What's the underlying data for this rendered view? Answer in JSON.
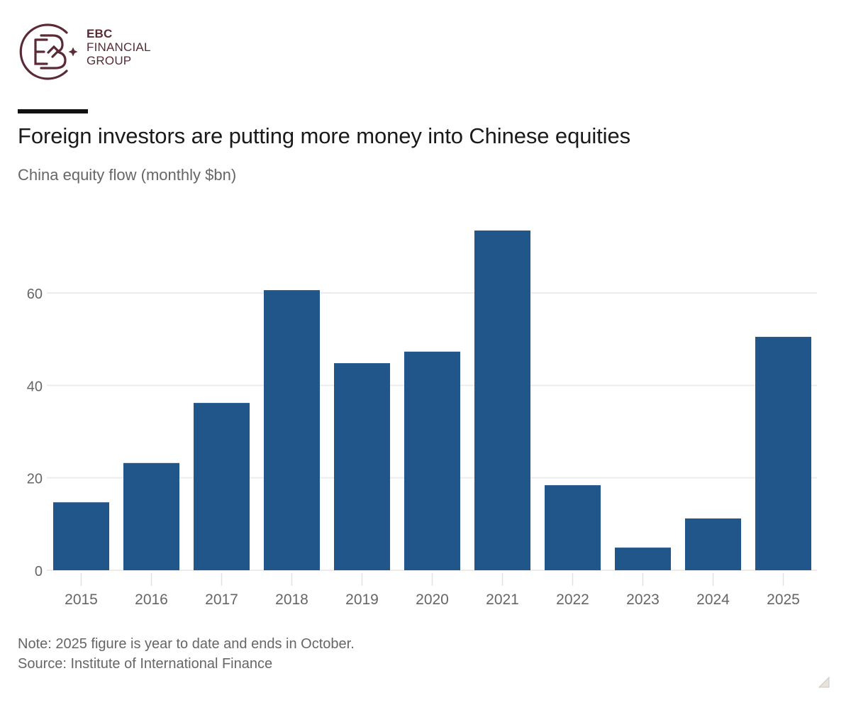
{
  "brand": {
    "line1": "EBC",
    "line2": "FINANCIAL",
    "line3": "GROUP",
    "color": "#5a2a35",
    "logo_icon": "ebc-monogram-icon"
  },
  "header": {
    "title": "Foreign investors are putting more money into Chinese equities",
    "subtitle": "China equity flow (monthly $bn)"
  },
  "footer": {
    "note": "Note: 2025 figure is year to date and ends in October.",
    "source": "Source: Institute of International Finance"
  },
  "colors": {
    "bar": "#21568b",
    "grid": "#ececec",
    "axis_text": "#666666",
    "title": "#1a1a1a"
  },
  "chart_data": {
    "type": "bar",
    "title": "Foreign investors are putting more money into Chinese equities",
    "subtitle": "China equity flow (monthly $bn)",
    "xlabel": "",
    "ylabel": "China equity flow (monthly $bn)",
    "categories": [
      "2015",
      "2016",
      "2017",
      "2018",
      "2019",
      "2020",
      "2021",
      "2022",
      "2023",
      "2024",
      "2025"
    ],
    "values": [
      14.7,
      23.2,
      36.2,
      60.6,
      44.8,
      47.3,
      73.5,
      18.4,
      4.9,
      11.2,
      50.5
    ],
    "ylim": [
      0,
      75
    ],
    "yticks": [
      0,
      20,
      40,
      60
    ],
    "grid": true,
    "legend": null,
    "annotations": [
      "Note: 2025 figure is year to date and ends in October.",
      "Source: Institute of International Finance"
    ]
  }
}
